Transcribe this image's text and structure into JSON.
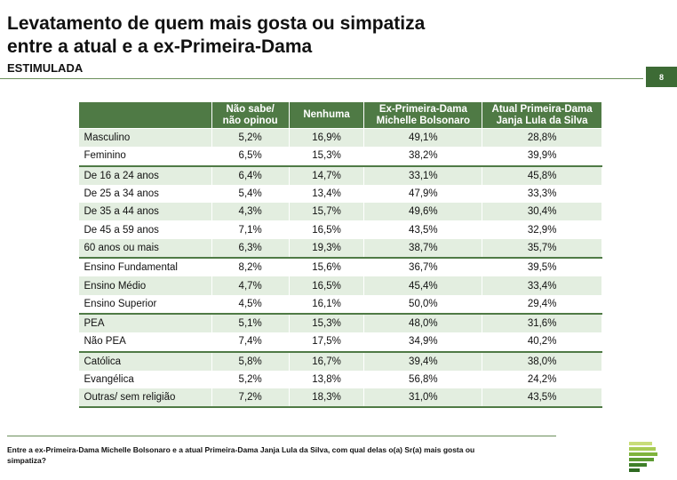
{
  "header": {
    "title_line1": "Levatamento de quem mais gosta ou simpatiza",
    "title_line2": "entre a atual e a ex-Primeira-Dama",
    "subtitle": "ESTIMULADA",
    "page_number": "8"
  },
  "table": {
    "columns": [
      {
        "line1": "Não sabe/",
        "line2": "não opinou"
      },
      {
        "line1": "Nenhuma",
        "line2": ""
      },
      {
        "line1": "Ex-Primeira-Dama",
        "line2": "Michelle Bolsonaro"
      },
      {
        "line1": "Atual Primeira-Dama",
        "line2": "Janja Lula da Silva"
      }
    ],
    "rows": [
      {
        "label": "Masculino",
        "values": [
          "5,2%",
          "16,9%",
          "49,1%",
          "28,8%"
        ]
      },
      {
        "label": "Feminino",
        "values": [
          "6,5%",
          "15,3%",
          "38,2%",
          "39,9%"
        ]
      },
      {
        "label": "De 16 a 24 anos",
        "values": [
          "6,4%",
          "14,7%",
          "33,1%",
          "45,8%"
        ]
      },
      {
        "label": "De 25 a 34 anos",
        "values": [
          "5,4%",
          "13,4%",
          "47,9%",
          "33,3%"
        ]
      },
      {
        "label": "De 35 a 44 anos",
        "values": [
          "4,3%",
          "15,7%",
          "49,6%",
          "30,4%"
        ]
      },
      {
        "label": "De 45 a 59 anos",
        "values": [
          "7,1%",
          "16,5%",
          "43,5%",
          "32,9%"
        ]
      },
      {
        "label": "60 anos ou mais",
        "values": [
          "6,3%",
          "19,3%",
          "38,7%",
          "35,7%"
        ]
      },
      {
        "label": "Ensino Fundamental",
        "values": [
          "8,2%",
          "15,6%",
          "36,7%",
          "39,5%"
        ]
      },
      {
        "label": "Ensino Médio",
        "values": [
          "4,7%",
          "16,5%",
          "45,4%",
          "33,4%"
        ]
      },
      {
        "label": "Ensino Superior",
        "values": [
          "4,5%",
          "16,1%",
          "50,0%",
          "29,4%"
        ]
      },
      {
        "label": "PEA",
        "values": [
          "5,1%",
          "15,3%",
          "48,0%",
          "31,6%"
        ]
      },
      {
        "label": "Não PEA",
        "values": [
          "7,4%",
          "17,5%",
          "34,9%",
          "40,2%"
        ]
      },
      {
        "label": "Católica",
        "values": [
          "5,8%",
          "16,7%",
          "39,4%",
          "38,0%"
        ]
      },
      {
        "label": "Evangélica",
        "values": [
          "5,2%",
          "13,8%",
          "56,8%",
          "24,2%"
        ]
      },
      {
        "label": "Outras/ sem religião",
        "values": [
          "7,2%",
          "18,3%",
          "31,0%",
          "43,5%"
        ]
      }
    ]
  },
  "footnote": {
    "line1": "Entre a ex-Primeira-Dama Michelle Bolsonaro e a atual Primeira-Dama Janja Lula da Silva, com qual delas o(a) Sr(a) mais gosta ou",
    "line2": "simpatiza?"
  },
  "colors": {
    "header_green": "#4f7a45",
    "stripe_green": "#e3eee0",
    "page_badge": "#3d6b35"
  },
  "icons": {
    "logo": "green-stripes-logo"
  }
}
